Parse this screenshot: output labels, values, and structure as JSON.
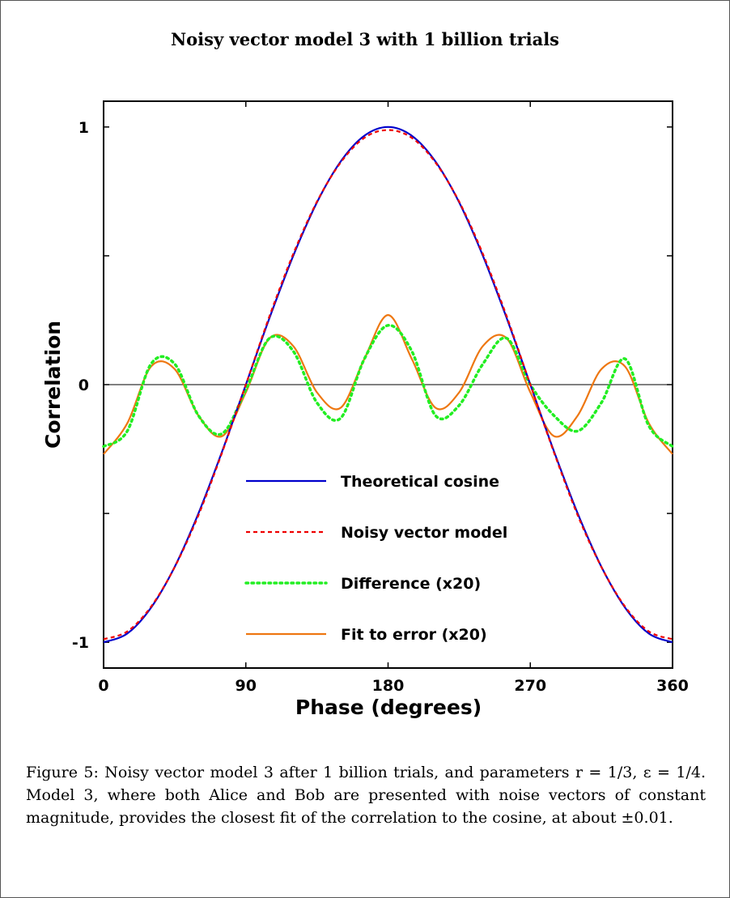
{
  "caption": "Figure 5:  Noisy vector model 3 after 1 billion trials, and parameters r = 1/3, ε = 1/4. Model 3, where both Alice and Bob are presented with noise vectors of constant magnitude, provides the closest fit of the correlation to the cosine, at about ±0.01.",
  "chart_data": {
    "type": "line",
    "title": "Noisy vector model 3 with 1 billion trials",
    "xlabel": "Phase (degrees)",
    "ylabel": "Correlation",
    "xlim": [
      0,
      360
    ],
    "ylim": [
      -1.1,
      1.1
    ],
    "xticks": [
      0,
      90,
      180,
      270,
      360
    ],
    "xtick_labels": [
      "0",
      "90",
      "180",
      "270",
      "360"
    ],
    "yticks": [
      -1,
      -0.5,
      0,
      0.5,
      1
    ],
    "ytick_labels": [
      "-1",
      "",
      "0",
      "",
      "1"
    ],
    "zero_line": true,
    "legend_position": "center",
    "x": [
      0,
      15,
      30,
      45,
      60,
      75,
      90,
      105,
      120,
      135,
      150,
      165,
      180,
      195,
      210,
      225,
      240,
      255,
      270,
      285,
      300,
      315,
      330,
      345,
      360
    ],
    "series": [
      {
        "name": "Theoretical cosine",
        "color": "#0000cc",
        "style": "solid",
        "values": [
          -1.0,
          -0.966,
          -0.866,
          -0.707,
          -0.5,
          -0.259,
          0.0,
          0.259,
          0.5,
          0.707,
          0.866,
          0.966,
          1.0,
          0.966,
          0.866,
          0.707,
          0.5,
          0.259,
          0.0,
          -0.259,
          -0.5,
          -0.707,
          -0.866,
          -0.966,
          -1.0
        ]
      },
      {
        "name": "Noisy vector model",
        "color": "#ee0000",
        "style": "dashed",
        "values": [
          -0.988,
          -0.958,
          -0.862,
          -0.708,
          -0.507,
          -0.263,
          0.0,
          0.266,
          0.507,
          0.71,
          0.862,
          0.958,
          0.988,
          0.958,
          0.862,
          0.71,
          0.507,
          0.266,
          0.0,
          -0.263,
          -0.507,
          -0.708,
          -0.862,
          -0.958,
          -0.988
        ]
      },
      {
        "name": "Difference (x20)",
        "color": "#22ee22",
        "style": "dotted",
        "values": [
          -0.24,
          -0.18,
          0.08,
          0.08,
          -0.12,
          -0.19,
          -0.02,
          0.18,
          0.13,
          -0.07,
          -0.13,
          0.1,
          0.23,
          0.13,
          -0.12,
          -0.08,
          0.08,
          0.18,
          0.0,
          -0.12,
          -0.18,
          -0.07,
          0.1,
          -0.16,
          -0.24
        ]
      },
      {
        "name": "Fit to error (x20)",
        "color": "#ee7711",
        "style": "solid",
        "values": [
          -0.27,
          -0.15,
          0.07,
          0.06,
          -0.12,
          -0.2,
          -0.03,
          0.18,
          0.15,
          -0.03,
          -0.09,
          0.1,
          0.27,
          0.1,
          -0.09,
          -0.03,
          0.15,
          0.18,
          -0.03,
          -0.2,
          -0.12,
          0.06,
          0.07,
          -0.15,
          -0.27
        ]
      }
    ]
  }
}
